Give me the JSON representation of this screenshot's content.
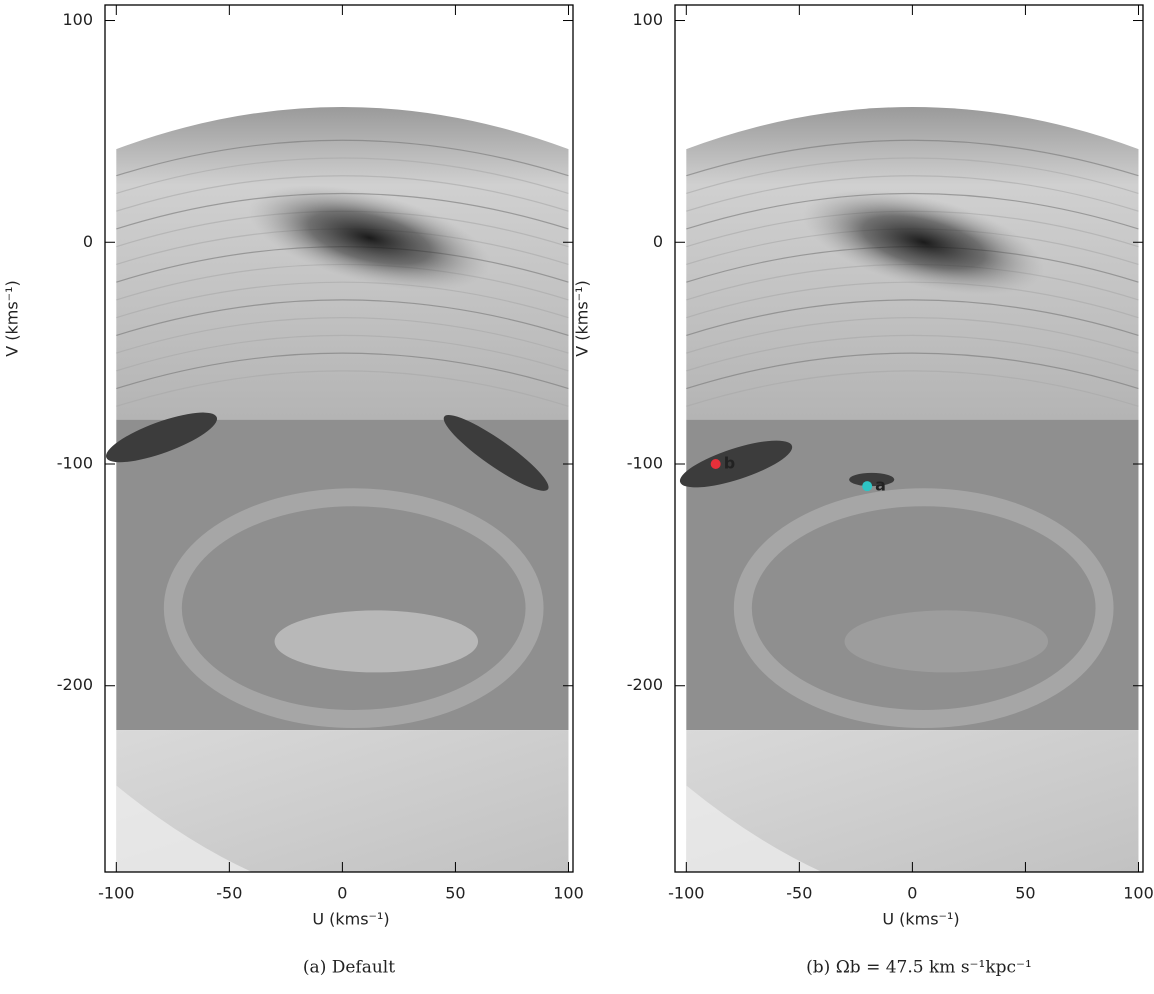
{
  "chart_data": [
    {
      "type": "density",
      "caption": "(a) Default",
      "xlabel": "U (kms⁻¹)",
      "ylabel": "V (kms⁻¹)",
      "xlim": [
        -105,
        102
      ],
      "ylim": [
        -284,
        107
      ],
      "xticks": [
        -100,
        -50,
        0,
        50,
        100
      ],
      "yticks": [
        -200,
        -100,
        0,
        100
      ],
      "series": []
    },
    {
      "type": "density",
      "caption": "(b) Ωb = 47.5 km s⁻¹kpc⁻¹",
      "xlabel": "U (kms⁻¹)",
      "ylabel": "V (kms⁻¹)",
      "xlim": [
        -105,
        102
      ],
      "ylim": [
        -284,
        107
      ],
      "xticks": [
        -100,
        -50,
        0,
        50,
        100
      ],
      "yticks": [
        -200,
        -100,
        0,
        100
      ],
      "series": [
        {
          "name": "b",
          "color": "#e8303a",
          "x": [
            -87
          ],
          "values": [
            -100
          ]
        },
        {
          "name": "a",
          "color": "#2ec4c4",
          "x": [
            -20
          ],
          "values": [
            -110
          ]
        }
      ]
    }
  ]
}
